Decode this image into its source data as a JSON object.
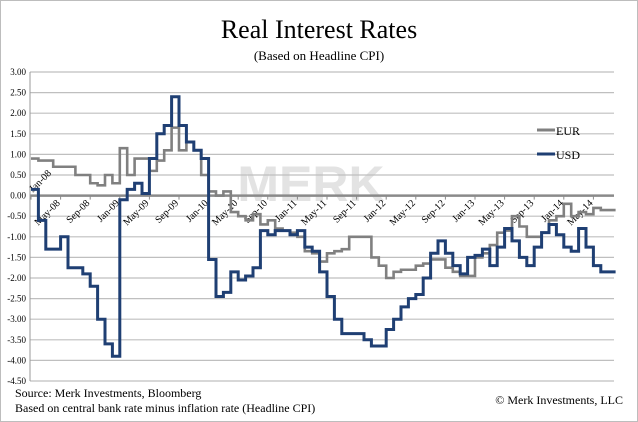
{
  "chart_data": {
    "type": "line",
    "title": "Real Interest Rates",
    "subtitle": "(Based on Headline CPI)",
    "xlabel": "",
    "ylabel": "",
    "ylim": [
      -4.5,
      3.0
    ],
    "y_ticks": [
      "3.00",
      "2.50",
      "2.00",
      "1.50",
      "1.00",
      "0.50",
      "0.00",
      "-0.50",
      "-1.00",
      "-1.50",
      "-2.00",
      "-2.50",
      "-3.00",
      "-3.50",
      "-4.00",
      "-4.50"
    ],
    "x_tick_labels": [
      "Jan-08",
      "May-08",
      "Sep-08",
      "Jan-09",
      "May-09",
      "Sep-09",
      "Jan-10",
      "May-10",
      "Sep-10",
      "Jan-11",
      "May-11",
      "Sep-11",
      "Jan-12",
      "May-12",
      "Sep-12",
      "Jan-13",
      "May-13",
      "Sep-13",
      "Jan-14",
      "May-14"
    ],
    "x_start": "Jan-08",
    "x_end": "Aug-14",
    "x_frequency": "monthly",
    "grid": true,
    "legend": "right",
    "series": [
      {
        "name": "EUR",
        "color": "#808080",
        "values": [
          0.9,
          0.85,
          0.85,
          0.7,
          0.7,
          0.7,
          0.5,
          0.5,
          0.3,
          0.25,
          0.5,
          0.3,
          1.15,
          0.5,
          0.9,
          0.9,
          0.6,
          0.85,
          1.1,
          1.65,
          1.1,
          1.3,
          1.1,
          0.5,
          0.1,
          0.0,
          0.1,
          -0.4,
          -0.5,
          -0.6,
          -0.45,
          -0.7,
          -0.6,
          -0.8,
          -0.85,
          -0.9,
          -1.0,
          -1.35,
          -1.4,
          -1.6,
          -1.4,
          -1.35,
          -1.3,
          -1.0,
          -1.0,
          -1.0,
          -1.5,
          -1.7,
          -2.0,
          -1.85,
          -1.8,
          -1.8,
          -1.7,
          -1.65,
          -1.55,
          -1.55,
          -1.75,
          -1.85,
          -1.95,
          -1.95,
          -1.5,
          -1.4,
          -1.2,
          -0.9,
          -0.85,
          -0.5,
          -0.75,
          -1.0,
          -1.0,
          -0.9,
          -0.6,
          -0.5,
          -0.2,
          -0.5,
          -0.4,
          -0.45,
          -0.3,
          -0.35,
          -0.35,
          -0.35
        ]
      },
      {
        "name": "USD",
        "color": "#1f3f73",
        "values": [
          0.15,
          -0.6,
          -1.3,
          -1.3,
          -1.0,
          -1.75,
          -1.75,
          -1.9,
          -2.2,
          -3.0,
          -3.6,
          -3.9,
          -0.1,
          0.15,
          0.3,
          0.05,
          0.9,
          1.5,
          1.7,
          2.4,
          1.7,
          1.3,
          1.1,
          0.9,
          -1.55,
          -2.45,
          -2.35,
          -1.85,
          -2.05,
          -1.95,
          -1.75,
          -0.85,
          -0.95,
          -0.85,
          -0.85,
          -0.95,
          -0.85,
          -1.25,
          -1.35,
          -1.85,
          -2.45,
          -3.0,
          -3.35,
          -3.35,
          -3.35,
          -3.5,
          -3.65,
          -3.65,
          -3.25,
          -3.0,
          -2.7,
          -2.5,
          -2.4,
          -2.0,
          -1.4,
          -1.1,
          -1.4,
          -1.7,
          -1.9,
          -1.5,
          -1.45,
          -1.3,
          -1.7,
          -1.25,
          -0.8,
          -1.1,
          -1.5,
          -1.7,
          -1.25,
          -0.9,
          -0.7,
          -0.95,
          -1.25,
          -1.35,
          -0.8,
          -1.25,
          -1.7,
          -1.85,
          -1.85,
          -1.85
        ]
      }
    ],
    "watermark": "MERK"
  },
  "footer": {
    "source": "Source: Merk Investments, Bloomberg",
    "note": "Based on central bank rate minus inflation rate (Headline CPI)",
    "copyright": "© Merk Investments, LLC"
  }
}
